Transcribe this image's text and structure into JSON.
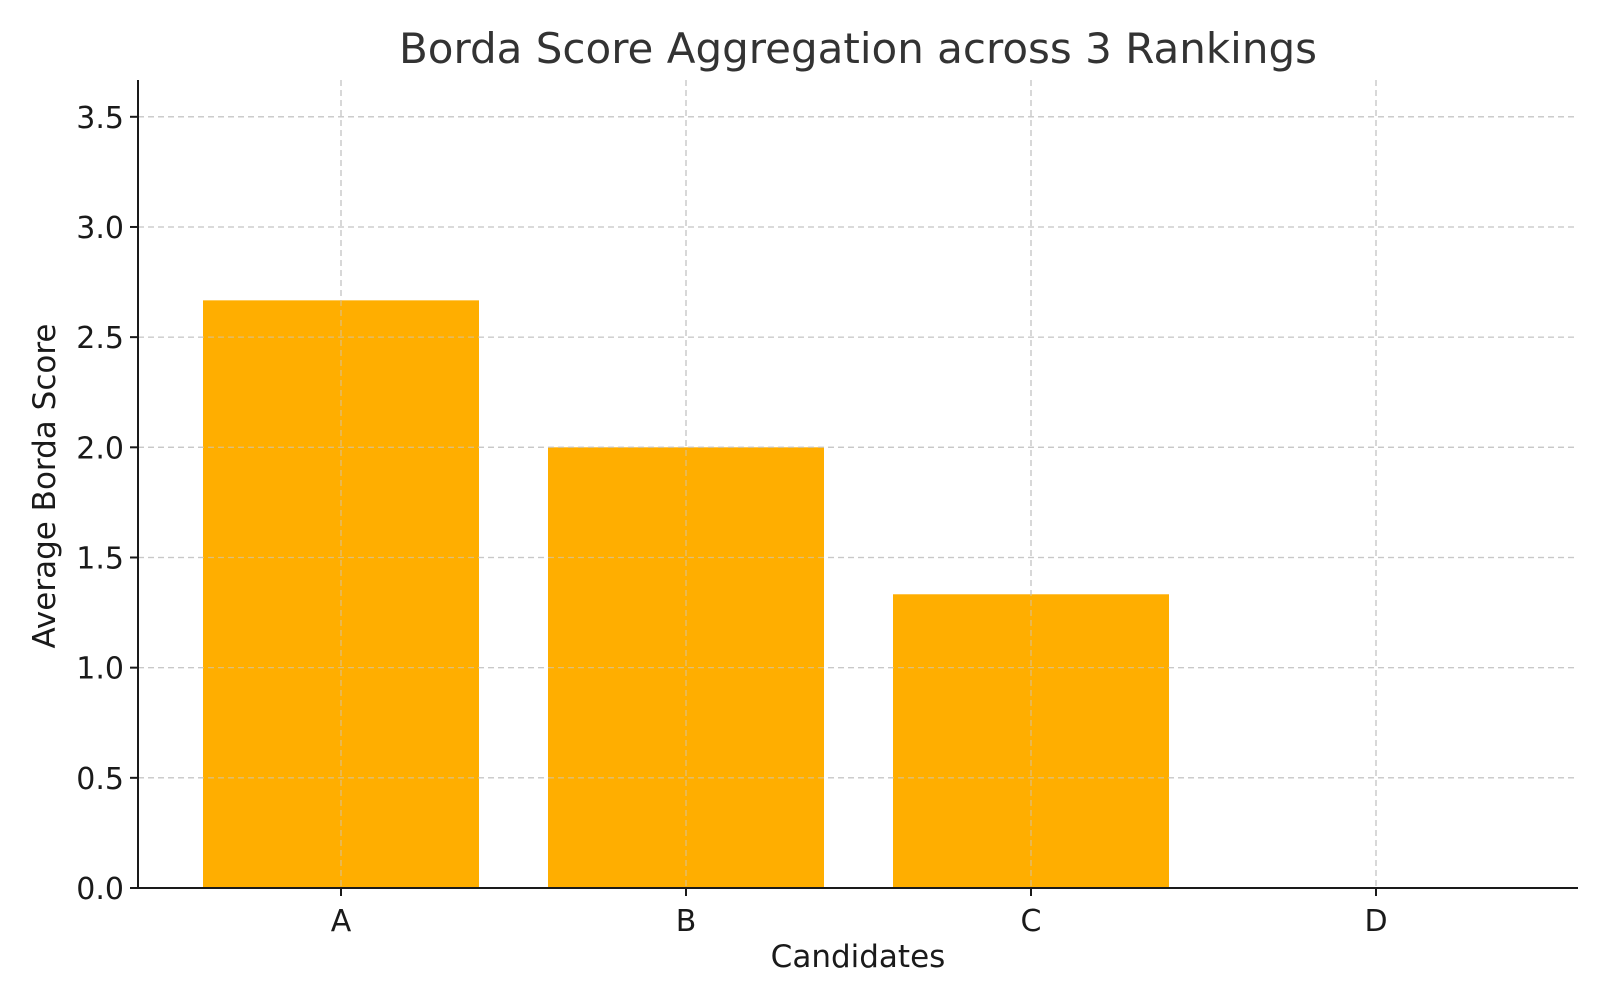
{
  "chart_data": {
    "type": "bar",
    "title": "Borda Score Aggregation across 3 Rankings",
    "xlabel": "Candidates",
    "ylabel": "Average Borda Score",
    "categories": [
      "A",
      "B",
      "C",
      "D"
    ],
    "values": [
      2.667,
      2.0,
      1.333,
      0.0
    ],
    "ylim": [
      0,
      3.667
    ],
    "yticks": [
      0.0,
      0.5,
      1.0,
      1.5,
      2.0,
      2.5,
      3.0,
      3.5
    ],
    "ytick_labels": [
      "0.0",
      "0.5",
      "1.0",
      "1.5",
      "2.0",
      "2.5",
      "3.0",
      "3.5"
    ],
    "grid": true,
    "bar_color": "#FFAE00"
  }
}
